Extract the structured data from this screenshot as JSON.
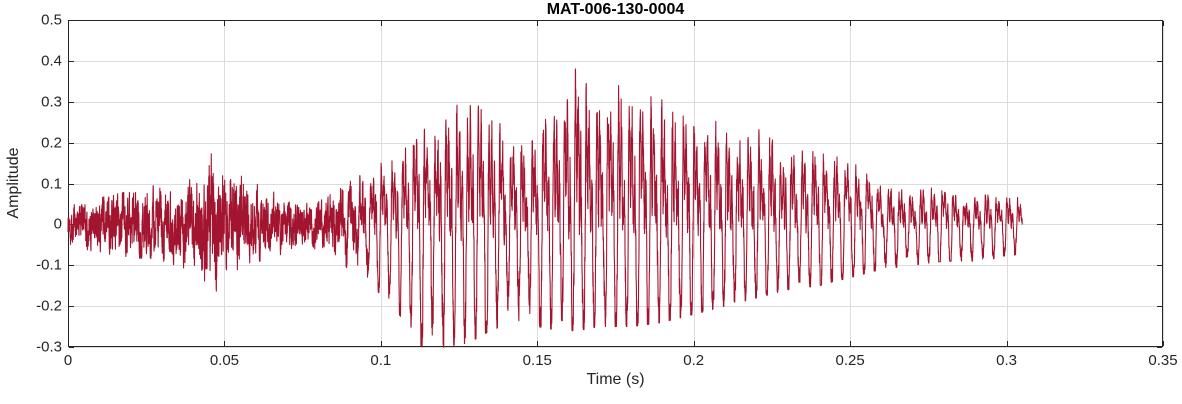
{
  "chart_data": {
    "type": "line",
    "title": "MAT-006-130-0004",
    "xlabel": "Time (s)",
    "ylabel": "Amplitude",
    "xlim": [
      0,
      0.35
    ],
    "ylim": [
      -0.3,
      0.5
    ],
    "x_ticks": [
      0,
      0.05,
      0.1,
      0.15,
      0.2,
      0.25,
      0.3,
      0.35
    ],
    "x_tick_labels": [
      "0",
      "0.05",
      "0.1",
      "0.15",
      "0.2",
      "0.25",
      "0.3",
      "0.35"
    ],
    "y_ticks": [
      -0.3,
      -0.2,
      -0.1,
      0,
      0.1,
      0.2,
      0.3,
      0.4,
      0.5
    ],
    "y_tick_labels": [
      "-0.3",
      "-0.2",
      "-0.1",
      "0",
      "0.1",
      "0.2",
      "0.3",
      "0.4",
      "0.5"
    ],
    "grid": true,
    "legend": "none",
    "line_color": "#A2142F",
    "signal": {
      "kind": "audio-waveform",
      "duration": 0.305,
      "fundamental_hz": 290,
      "voiced_onset": 0.082,
      "voiced_full": 0.098,
      "max_amplitude": 0.47,
      "min_amplitude": -0.3,
      "envelope": [
        {
          "t": 0.0,
          "pos": 0.05,
          "neg": -0.05
        },
        {
          "t": 0.01,
          "pos": 0.07,
          "neg": -0.07
        },
        {
          "t": 0.02,
          "pos": 0.08,
          "neg": -0.08
        },
        {
          "t": 0.03,
          "pos": 0.1,
          "neg": -0.09
        },
        {
          "t": 0.04,
          "pos": 0.13,
          "neg": -0.12
        },
        {
          "t": 0.045,
          "pos": 0.21,
          "neg": -0.22
        },
        {
          "t": 0.05,
          "pos": 0.15,
          "neg": -0.13
        },
        {
          "t": 0.058,
          "pos": 0.12,
          "neg": -0.1
        },
        {
          "t": 0.065,
          "pos": 0.09,
          "neg": -0.08
        },
        {
          "t": 0.075,
          "pos": 0.06,
          "neg": -0.06
        },
        {
          "t": 0.082,
          "pos": 0.06,
          "neg": -0.06
        },
        {
          "t": 0.09,
          "pos": 0.14,
          "neg": -0.12
        },
        {
          "t": 0.1,
          "pos": 0.2,
          "neg": -0.17
        },
        {
          "t": 0.108,
          "pos": 0.26,
          "neg": -0.24
        },
        {
          "t": 0.113,
          "pos": 0.28,
          "neg": -0.3
        },
        {
          "t": 0.12,
          "pos": 0.36,
          "neg": -0.3
        },
        {
          "t": 0.128,
          "pos": 0.37,
          "neg": -0.29
        },
        {
          "t": 0.135,
          "pos": 0.33,
          "neg": -0.26
        },
        {
          "t": 0.142,
          "pos": 0.29,
          "neg": -0.24
        },
        {
          "t": 0.15,
          "pos": 0.33,
          "neg": -0.25
        },
        {
          "t": 0.157,
          "pos": 0.4,
          "neg": -0.26
        },
        {
          "t": 0.163,
          "pos": 0.47,
          "neg": -0.26
        },
        {
          "t": 0.17,
          "pos": 0.44,
          "neg": -0.25
        },
        {
          "t": 0.18,
          "pos": 0.4,
          "neg": -0.25
        },
        {
          "t": 0.19,
          "pos": 0.36,
          "neg": -0.24
        },
        {
          "t": 0.2,
          "pos": 0.33,
          "neg": -0.22
        },
        {
          "t": 0.21,
          "pos": 0.3,
          "neg": -0.2
        },
        {
          "t": 0.22,
          "pos": 0.27,
          "neg": -0.18
        },
        {
          "t": 0.23,
          "pos": 0.24,
          "neg": -0.16
        },
        {
          "t": 0.24,
          "pos": 0.22,
          "neg": -0.15
        },
        {
          "t": 0.25,
          "pos": 0.18,
          "neg": -0.13
        },
        {
          "t": 0.26,
          "pos": 0.13,
          "neg": -0.11
        },
        {
          "t": 0.27,
          "pos": 0.11,
          "neg": -0.1
        },
        {
          "t": 0.28,
          "pos": 0.1,
          "neg": -0.09
        },
        {
          "t": 0.29,
          "pos": 0.09,
          "neg": -0.09
        },
        {
          "t": 0.3,
          "pos": 0.09,
          "neg": -0.08
        },
        {
          "t": 0.305,
          "pos": 0.07,
          "neg": -0.07
        }
      ]
    }
  },
  "figure": {
    "background": "#ffffff",
    "axes_color": "#262626",
    "grid_color": "#dcdcdc",
    "title_color": "#000000",
    "label_color": "#262626"
  }
}
